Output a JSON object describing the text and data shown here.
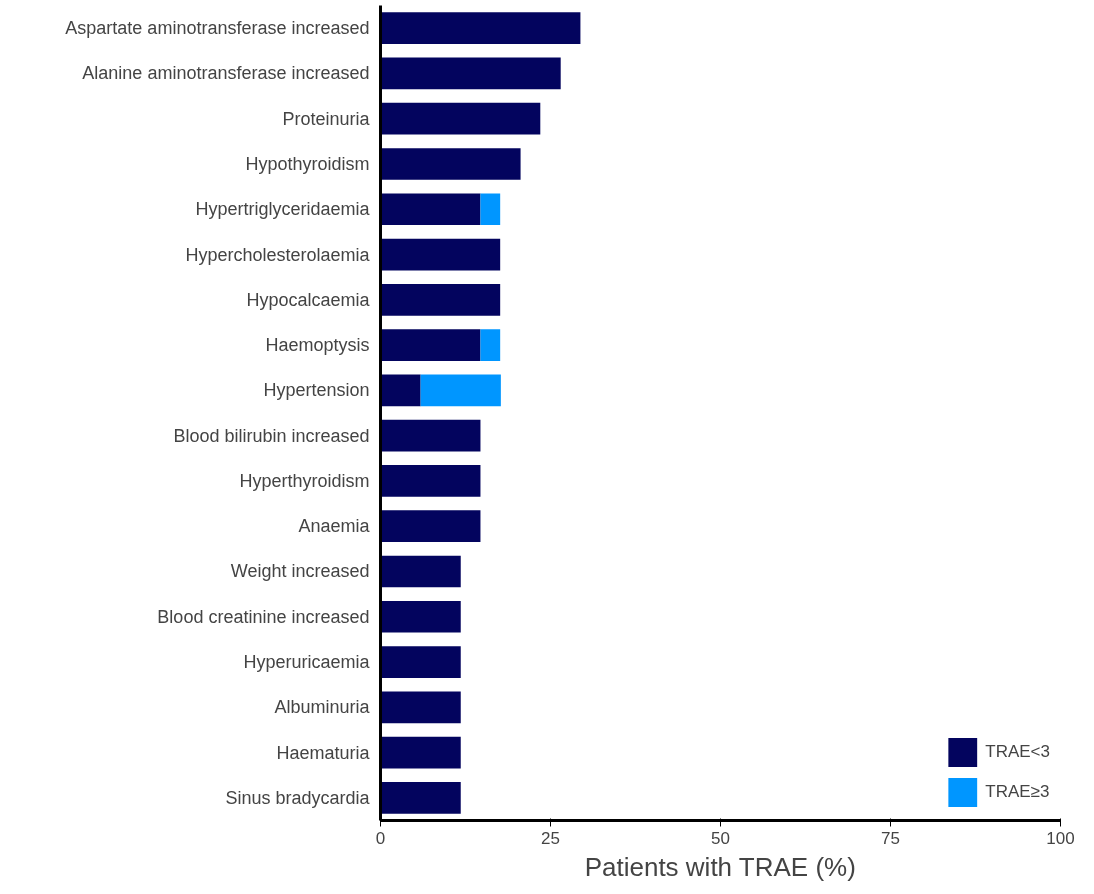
{
  "chart_data": {
    "type": "bar",
    "orientation": "horizontal",
    "stacked": true,
    "xlabel": "Patients with TRAE (%)",
    "categories": [
      "Aspartate aminotransferase increased",
      "Alanine aminotransferase increased",
      "Proteinuria",
      "Hypothyroidism",
      "Hypertriglyceridaemia",
      "Hypercholesterolaemia",
      "Hypocalcaemia",
      "Haemoptysis",
      "Hypertension",
      "Blood bilirubin increased",
      "Hyperthyroidism",
      "Anaemia",
      "Weight increased",
      "Blood creatinine increased",
      "Hyperuricaemia",
      "Albuminuria",
      "Haematuria",
      "Sinus bradycardia"
    ],
    "series": [
      {
        "name": "TRAE<3",
        "color": "#03045e",
        "values": [
          29.4,
          26.5,
          23.5,
          20.6,
          14.7,
          17.6,
          17.6,
          14.7,
          5.9,
          14.7,
          14.7,
          14.7,
          11.8,
          11.8,
          11.8,
          11.8,
          11.8,
          11.8
        ]
      },
      {
        "name": "TRAE≥3",
        "color": "#0096ff",
        "values": [
          null,
          null,
          null,
          null,
          2.9,
          null,
          null,
          2.9,
          11.8,
          null,
          null,
          null,
          null,
          null,
          null,
          null,
          null,
          null
        ]
      }
    ],
    "xlim": [
      0,
      100
    ],
    "xticks": [
      0,
      25,
      50,
      75,
      100
    ],
    "grid": false,
    "legend": "bottom right"
  }
}
